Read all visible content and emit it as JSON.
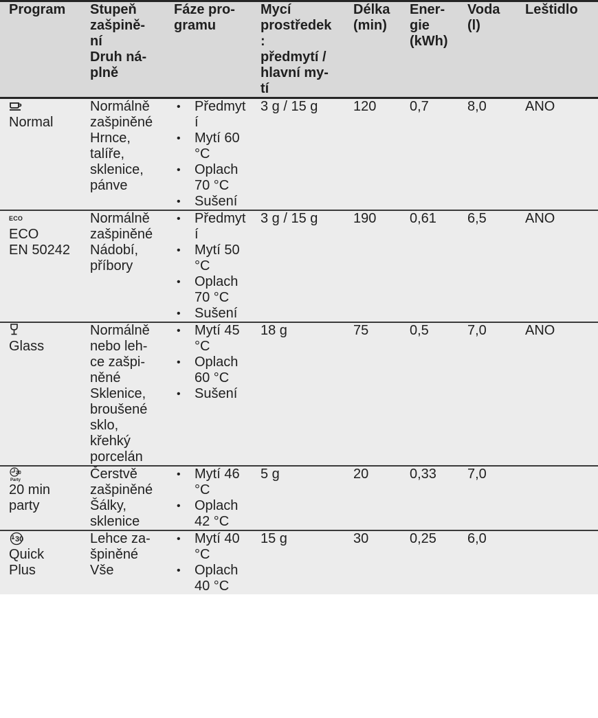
{
  "header": [
    {
      "key": "program",
      "lines": [
        "Program"
      ]
    },
    {
      "key": "soil",
      "lines": [
        "Stupeň",
        "zašpině-",
        "ní",
        "Druh ná-",
        "plně"
      ]
    },
    {
      "key": "phases",
      "lines": [
        "Fáze pro-",
        "gramu"
      ]
    },
    {
      "key": "detergent",
      "lines": [
        "Mycí",
        "prostředek",
        ":",
        "předmytí /",
        "hlavní my-",
        "tí"
      ]
    },
    {
      "key": "duration",
      "lines": [
        "Délka",
        "(min)"
      ]
    },
    {
      "key": "energy",
      "lines": [
        "Ener-",
        "gie",
        "(kWh)"
      ]
    },
    {
      "key": "water",
      "lines": [
        "Voda",
        "(l)"
      ]
    },
    {
      "key": "rinse_aid",
      "lines": [
        "Leštidlo"
      ]
    }
  ],
  "rows": [
    {
      "icon": "cup-icon",
      "program_lines": [
        "Normal"
      ],
      "soil_lines": [
        "Normálně",
        "zašpiněné",
        "Hrnce,",
        "talíře,",
        "sklenice,",
        "pánve"
      ],
      "phases": [
        [
          "Předmyt",
          "í"
        ],
        [
          "Mytí 60",
          "°C"
        ],
        [
          "Oplach",
          "70 °C"
        ],
        [
          "Sušení"
        ]
      ],
      "detergent": "3 g / 15 g",
      "duration": "120",
      "energy": "0,7",
      "water": "8,0",
      "rinse_aid": "ANO"
    },
    {
      "icon": "eco-icon",
      "icon_text": "ECO",
      "program_lines": [
        "ECO",
        "EN 50242"
      ],
      "soil_lines": [
        "Normálně",
        "zašpiněné",
        "Nádobí,",
        "příbory"
      ],
      "phases": [
        [
          "Předmyt",
          "í"
        ],
        [
          "Mytí 50",
          "°C"
        ],
        [
          "Oplach",
          "70 °C"
        ],
        [
          "Sušení"
        ]
      ],
      "detergent": "3 g / 15 g",
      "duration": "190",
      "energy": "0,61",
      "water": "6,5",
      "rinse_aid": "ANO"
    },
    {
      "icon": "wine-glass-icon",
      "program_lines": [
        "Glass"
      ],
      "soil_lines": [
        "Normálně",
        "nebo leh-",
        "ce zašpi-",
        "něné",
        "Sklenice,",
        "broušené",
        "sklo,",
        "křehký",
        "porcelán"
      ],
      "phases": [
        [
          "Mytí 45",
          "°C"
        ],
        [
          "Oplach",
          "60 °C"
        ],
        [
          "Sušení"
        ]
      ],
      "detergent": "18 g",
      "duration": "75",
      "energy": "0,5",
      "water": "7,0",
      "rinse_aid": "ANO"
    },
    {
      "icon": "timer-20-party-icon",
      "icon_text": [
        "20",
        "Party"
      ],
      "program_lines": [
        "20 min",
        "party"
      ],
      "soil_lines": [
        "Čerstvě",
        "zašpiněné",
        "Šálky,",
        "sklenice"
      ],
      "phases": [
        [
          "Mytí 46",
          "°C"
        ],
        [
          "Oplach",
          "42 °C"
        ]
      ],
      "detergent": "5 g",
      "duration": "20",
      "energy": "0,33",
      "water": "7,0",
      "rinse_aid": ""
    },
    {
      "icon": "timer-30-icon",
      "icon_text": "30",
      "program_lines": [
        "Quick",
        "Plus"
      ],
      "soil_lines": [
        "Lehce za-",
        "špiněné",
        "Vše"
      ],
      "phases": [
        [
          "Mytí 40",
          "°C"
        ],
        [
          "Oplach",
          "40 °C"
        ]
      ],
      "detergent": "15 g",
      "duration": "30",
      "energy": "0,25",
      "water": "6,0",
      "rinse_aid": ""
    }
  ]
}
